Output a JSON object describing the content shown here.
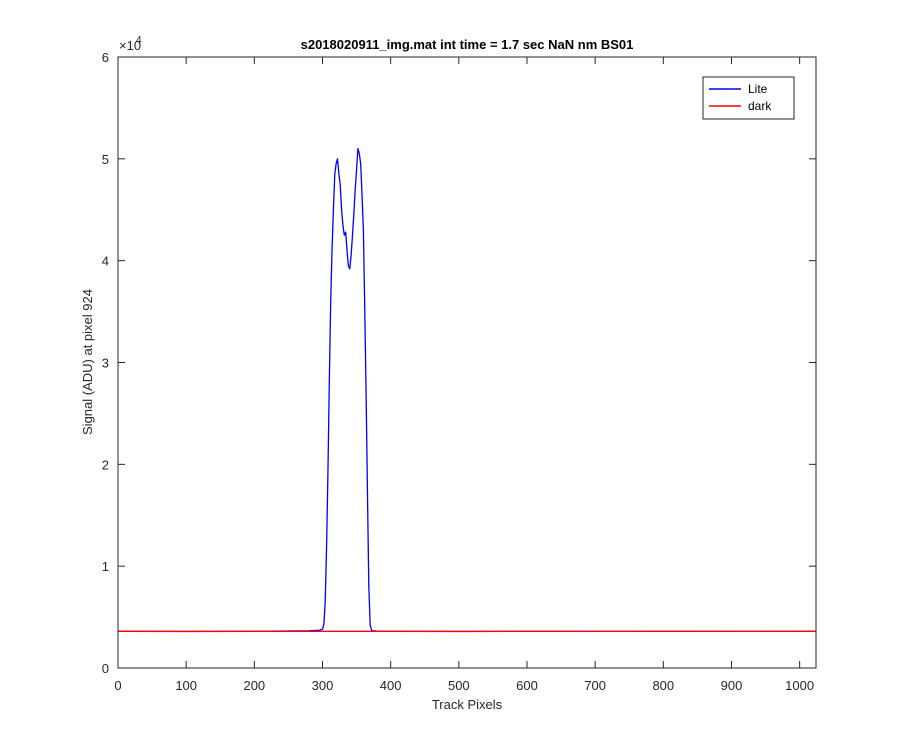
{
  "chart_data": {
    "type": "line",
    "title": "s2018020911_img.mat int time = 1.7 sec  NaN nm BS01",
    "xlabel": "Track Pixels",
    "ylabel": "Signal (ADU) at pixel 924",
    "xlim": [
      0,
      1024
    ],
    "ylim": [
      0,
      60000
    ],
    "x_ticks": [
      0,
      100,
      200,
      300,
      400,
      500,
      600,
      700,
      800,
      900,
      1000
    ],
    "y_ticks": [
      0,
      10000,
      20000,
      30000,
      40000,
      50000,
      60000
    ],
    "y_tick_labels": [
      "0",
      "1",
      "2",
      "3",
      "4",
      "5",
      "6"
    ],
    "y_exponent": "×10",
    "y_exponent_power": "4",
    "grid": false,
    "legend_position": "top-right",
    "series": [
      {
        "name": "Lite",
        "color": "#0000ff",
        "x": [
          0,
          100,
          200,
          280,
          295,
          300,
          302,
          304,
          306,
          308,
          310,
          312,
          314,
          316,
          318,
          320,
          322,
          324,
          326,
          328,
          330,
          332,
          334,
          336,
          338,
          340,
          342,
          344,
          346,
          348,
          350,
          352,
          354,
          356,
          358,
          360,
          362,
          364,
          366,
          368,
          370,
          372,
          374,
          380,
          400,
          500,
          600,
          700,
          800,
          900,
          1024
        ],
        "y": [
          3600,
          3580,
          3600,
          3650,
          3700,
          3800,
          4300,
          6500,
          12000,
          19000,
          28000,
          36000,
          41000,
          45000,
          48500,
          49500,
          50000,
          48500,
          47500,
          45000,
          43500,
          42500,
          42800,
          41000,
          39500,
          39200,
          40500,
          42500,
          44500,
          47000,
          49000,
          51000,
          50500,
          49500,
          46500,
          43000,
          35000,
          27000,
          17000,
          8000,
          4200,
          3700,
          3650,
          3620,
          3600,
          3580,
          3600,
          3590,
          3600,
          3590,
          3600
        ]
      },
      {
        "name": "dark",
        "color": "#ff0000",
        "x": [
          0,
          1024
        ],
        "y": [
          3600,
          3600
        ]
      }
    ]
  }
}
